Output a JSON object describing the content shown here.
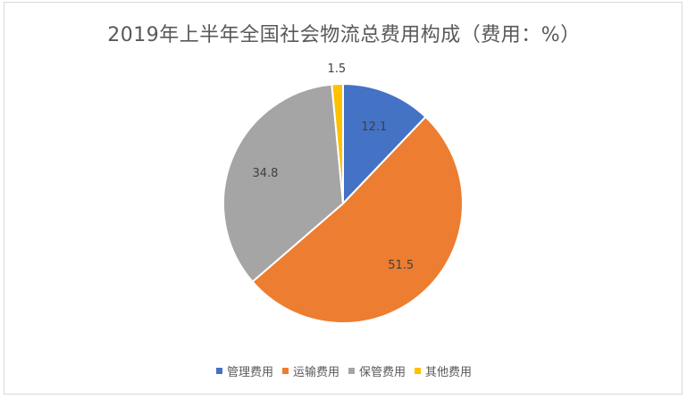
{
  "chart_data": {
    "type": "pie",
    "title": "2019年上半年全国社会物流总费用构成（费用：%）",
    "categories": [
      "管理费用",
      "运输费用",
      "保管费用",
      "其他费用"
    ],
    "values": [
      12.1,
      51.5,
      34.8,
      1.5
    ],
    "data_labels": [
      "12.1",
      "51.5",
      "34.8",
      "1.5"
    ],
    "colors": [
      "#4472c4",
      "#ed7d31",
      "#a5a5a5",
      "#ffc000"
    ],
    "legend_position": "bottom",
    "start_angle_deg": 0,
    "direction": "clockwise"
  }
}
